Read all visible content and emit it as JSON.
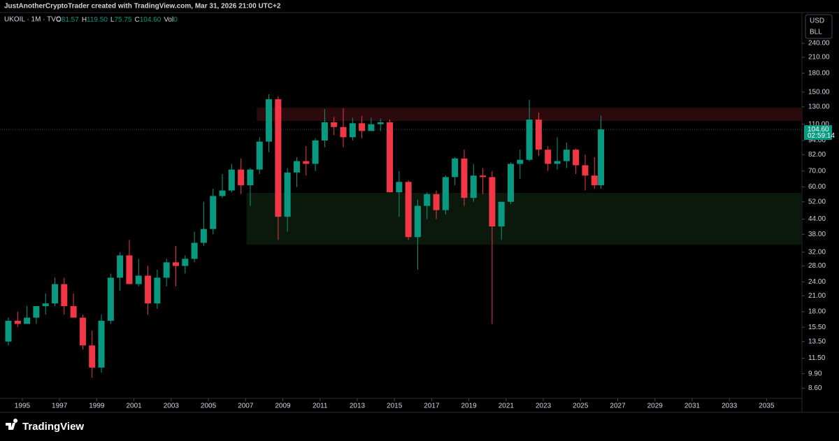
{
  "chart_data": {
    "type": "candlestick",
    "attribution": "JustAnotherCryptoTrader created with TradingView.com, Mar 31, 2026 21:00 UTC+2",
    "title": "UKOIL · 1M · TVC",
    "ohlc": [
      [
        "O",
        "81.57"
      ],
      [
        "H",
        "119.50"
      ],
      [
        "L",
        "75.75"
      ],
      [
        "C",
        "104.60"
      ],
      [
        "Vol",
        "0"
      ]
    ],
    "currency": "USD",
    "unit": "BLL",
    "logo": "TradingView",
    "log_scale": true,
    "up_color": "#089981",
    "down_color": "#f23645",
    "x": [
      1994.25,
      1994.75,
      1995.25,
      1995.75,
      1996.25,
      1996.75,
      1997.25,
      1997.75,
      1998.25,
      1998.75,
      1999.25,
      1999.75,
      2000.25,
      2000.75,
      2001.25,
      2001.75,
      2002.25,
      2002.75,
      2003.25,
      2003.75,
      2004.25,
      2004.75,
      2005.25,
      2005.75,
      2006.25,
      2006.75,
      2007.25,
      2007.75,
      2008.25,
      2008.75,
      2009.25,
      2009.75,
      2010.25,
      2010.75,
      2011.25,
      2011.75,
      2012.25,
      2012.75,
      2013.25,
      2013.75,
      2014.25,
      2014.75,
      2015.25,
      2015.75,
      2016.25,
      2016.75,
      2017.25,
      2017.75,
      2018.25,
      2018.75,
      2019.25,
      2019.75,
      2020.25,
      2020.75,
      2021.25,
      2021.75,
      2022.25,
      2022.75,
      2023.25,
      2023.75,
      2024.25,
      2024.75,
      2025.25,
      2025.75,
      2026.1
    ],
    "open": [
      13.5,
      16.5,
      16,
      17,
      19,
      19.5,
      23.5,
      19,
      17,
      13,
      10.5,
      16.5,
      25,
      31,
      23.5,
      25.5,
      19.5,
      25,
      29,
      28,
      30,
      35,
      40,
      55,
      58,
      71,
      61,
      71,
      93,
      140,
      45,
      69,
      77,
      75,
      94,
      112,
      107,
      97,
      111,
      103,
      110,
      112,
      57,
      63,
      37,
      50,
      56,
      48,
      66,
      79,
      54,
      67,
      66,
      41,
      52,
      75,
      78,
      115,
      86,
      75,
      77,
      86,
      74,
      67,
      61
    ],
    "high": [
      17,
      18,
      19,
      19,
      21.5,
      25,
      25,
      21.5,
      17.5,
      15,
      17.5,
      26,
      32,
      36,
      30,
      28,
      27,
      30,
      34,
      31,
      39,
      52,
      59,
      68,
      75,
      79,
      72,
      97,
      147,
      144,
      72,
      80,
      89,
      96,
      127,
      118,
      128,
      117,
      119,
      117,
      116,
      115,
      70,
      64,
      53,
      57,
      58,
      67,
      80,
      86,
      75,
      72,
      70,
      52,
      76,
      86,
      139,
      123,
      89,
      97,
      92,
      87,
      82,
      80,
      119.5
    ],
    "low": [
      13,
      15.5,
      16,
      16,
      17.5,
      19,
      17.5,
      17,
      12.5,
      9.5,
      10,
      16,
      22,
      25,
      23,
      17.5,
      18.5,
      23,
      23,
      26,
      29,
      34,
      38,
      54,
      57,
      56,
      50,
      68,
      84,
      36,
      39,
      60,
      67,
      70,
      88,
      99,
      88,
      94,
      96,
      105,
      103,
      57,
      45,
      36,
      27,
      44,
      44,
      46,
      61,
      50,
      52,
      56,
      16,
      36,
      51,
      65,
      77,
      81,
      70,
      71,
      72,
      68,
      58,
      59,
      59
    ],
    "close": [
      16.5,
      16,
      17,
      19,
      19.5,
      23.5,
      19,
      17,
      13,
      10.5,
      16.5,
      25,
      31,
      23.5,
      25.5,
      19.5,
      25,
      29,
      28,
      30,
      35,
      40,
      55,
      58,
      71,
      61,
      71,
      93,
      140,
      45,
      69,
      77,
      75,
      94,
      112,
      107,
      97,
      111,
      103,
      110,
      112,
      57,
      63,
      37,
      50,
      56,
      48,
      66,
      79,
      54,
      67,
      66,
      41,
      52,
      75,
      78,
      115,
      86,
      75,
      77,
      86,
      74,
      67,
      61,
      104.6
    ],
    "last_price": {
      "value": 104.6,
      "label": "104.60"
    },
    "countdown": "02:59:14",
    "zones": [
      {
        "x0": 2007.6,
        "x1": 2036.9,
        "y0": 113.5,
        "y1": 129,
        "color": "#2b0a0d"
      },
      {
        "x0": 2007.05,
        "x1": 2036.9,
        "y0": 34.4,
        "y1": 56.7,
        "color": "#0b190d"
      }
    ],
    "xlim": [
      1993.8,
      2036.9
    ],
    "xticks": [
      1995,
      1997,
      1999,
      2001,
      2003,
      2005,
      2007,
      2009,
      2011,
      2013,
      2015,
      2017,
      2019,
      2021,
      2023,
      2025,
      2027,
      2029,
      2031,
      2033,
      2035
    ],
    "ylim": [
      7.8,
      323
    ],
    "yticks": [
      {
        "value": 240,
        "label": "240.00"
      },
      {
        "value": 210,
        "label": "210.00"
      },
      {
        "value": 180,
        "label": "180.00"
      },
      {
        "value": 150,
        "label": "150.00"
      },
      {
        "value": 130,
        "label": "130.00"
      },
      {
        "value": 110,
        "label": "110.00"
      },
      {
        "value": 94,
        "label": "94.00"
      },
      {
        "value": 82,
        "label": "82.00"
      },
      {
        "value": 70,
        "label": "70.00"
      },
      {
        "value": 60,
        "label": "60.00"
      },
      {
        "value": 52,
        "label": "52.00"
      },
      {
        "value": 44,
        "label": "44.00"
      },
      {
        "value": 38,
        "label": "38.00"
      },
      {
        "value": 32,
        "label": "32.00"
      },
      {
        "value": 28,
        "label": "28.00"
      },
      {
        "value": 24,
        "label": "24.00"
      },
      {
        "value": 21,
        "label": "21.00"
      },
      {
        "value": 18,
        "label": "18.00"
      },
      {
        "value": 15.5,
        "label": "15.50"
      },
      {
        "value": 13.5,
        "label": "13.50"
      },
      {
        "value": 11.5,
        "label": "11.50"
      },
      {
        "value": 9.9,
        "label": "9.90"
      },
      {
        "value": 8.6,
        "label": "8.60"
      }
    ]
  }
}
